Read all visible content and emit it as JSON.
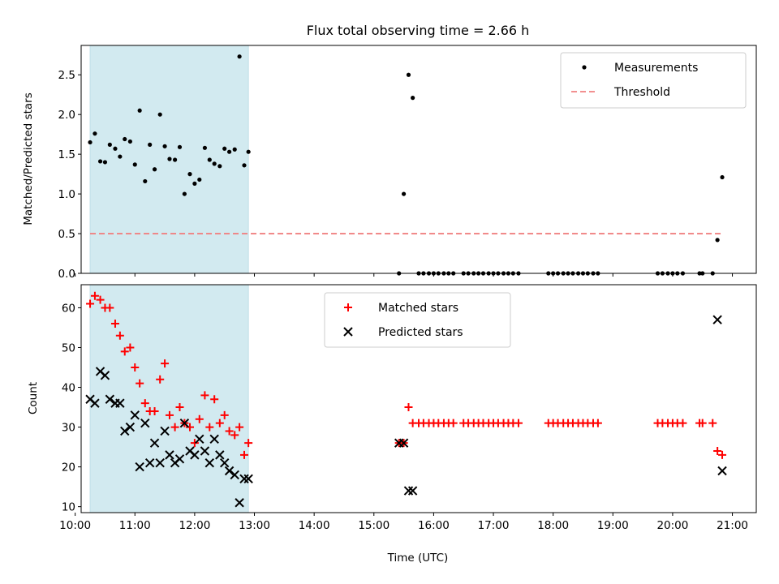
{
  "chart_data": [
    {
      "type": "scatter",
      "title": "Flux total observing time = 2.66 h",
      "xlabel": "",
      "ylabel": "Matched/Predicted stars",
      "xlim": [
        10.1,
        21.4
      ],
      "ylim": [
        0,
        2.87
      ],
      "yticks": [
        0.0,
        0.5,
        1.0,
        1.5,
        2.0,
        2.5
      ],
      "ytick_labels": [
        "0.0",
        "0.5",
        "1.0",
        "1.5",
        "2.0",
        "2.5"
      ],
      "shaded_span": [
        10.25,
        12.9
      ],
      "shade_color": "#d2eaf0",
      "legend_position": "top-right",
      "series": [
        {
          "name": "Measurements",
          "marker": "dot",
          "color": "#000000",
          "x": [
            10.25,
            10.33,
            10.42,
            10.5,
            10.58,
            10.67,
            10.75,
            10.83,
            10.92,
            11.0,
            11.08,
            11.17,
            11.25,
            11.33,
            11.42,
            11.5,
            11.58,
            11.67,
            11.75,
            11.83,
            11.92,
            12.0,
            12.08,
            12.17,
            12.25,
            12.33,
            12.42,
            12.5,
            12.58,
            12.67,
            12.75,
            12.83,
            12.9,
            15.42,
            15.5,
            15.58,
            15.65,
            15.75,
            15.83,
            15.92,
            16.0,
            16.08,
            16.17,
            16.25,
            16.33,
            16.5,
            16.58,
            16.67,
            16.75,
            16.83,
            16.92,
            17.0,
            17.08,
            17.17,
            17.25,
            17.33,
            17.42,
            17.92,
            18.0,
            18.08,
            18.17,
            18.25,
            18.33,
            18.42,
            18.5,
            18.58,
            18.67,
            18.75,
            19.75,
            19.83,
            19.92,
            20.0,
            20.08,
            20.17,
            20.45,
            20.5,
            20.67,
            20.75,
            20.83
          ],
          "y": [
            1.65,
            1.76,
            1.41,
            1.4,
            1.62,
            1.57,
            1.47,
            1.69,
            1.66,
            1.37,
            2.05,
            1.16,
            1.62,
            1.31,
            2.0,
            1.6,
            1.44,
            1.43,
            1.59,
            1.0,
            1.25,
            1.13,
            1.18,
            1.58,
            1.43,
            1.38,
            1.35,
            1.57,
            1.53,
            1.56,
            2.73,
            1.36,
            1.53,
            0,
            1.0,
            2.5,
            2.21,
            0,
            0,
            0,
            0,
            0,
            0,
            0,
            0,
            0,
            0,
            0,
            0,
            0,
            0,
            0,
            0,
            0,
            0,
            0,
            0,
            0,
            0,
            0,
            0,
            0,
            0,
            0,
            0,
            0,
            0,
            0,
            0,
            0,
            0,
            0,
            0,
            0,
            0,
            0,
            0,
            0.42,
            1.21
          ]
        },
        {
          "name": "Threshold",
          "style": "dashed",
          "color": "#f08080",
          "x": [
            10.25,
            20.83
          ],
          "y": [
            0.5,
            0.5
          ]
        }
      ]
    },
    {
      "type": "scatter",
      "title": "",
      "xlabel": "Time (UTC)",
      "ylabel": "Count",
      "xlim": [
        10.1,
        21.4
      ],
      "ylim": [
        8.5,
        65.8
      ],
      "yticks": [
        10,
        20,
        30,
        40,
        50,
        60
      ],
      "ytick_labels": [
        "10",
        "20",
        "30",
        "40",
        "50",
        "60"
      ],
      "xticks": [
        10,
        11,
        12,
        13,
        14,
        15,
        16,
        17,
        18,
        19,
        20,
        21
      ],
      "xtick_labels": [
        "10:00",
        "11:00",
        "12:00",
        "13:00",
        "14:00",
        "15:00",
        "16:00",
        "17:00",
        "18:00",
        "19:00",
        "20:00",
        "21:00"
      ],
      "shaded_span": [
        10.25,
        12.9
      ],
      "shade_color": "#d2eaf0",
      "legend_position": "top-center",
      "series": [
        {
          "name": "Matched stars",
          "marker": "plus",
          "color": "#ff0000",
          "x": [
            10.25,
            10.33,
            10.42,
            10.5,
            10.58,
            10.67,
            10.75,
            10.83,
            10.92,
            11.0,
            11.08,
            11.17,
            11.25,
            11.33,
            11.42,
            11.5,
            11.58,
            11.67,
            11.75,
            11.83,
            11.92,
            12.0,
            12.08,
            12.17,
            12.25,
            12.33,
            12.42,
            12.5,
            12.58,
            12.67,
            12.75,
            12.83,
            12.9,
            15.42,
            15.5,
            15.58,
            15.65,
            15.75,
            15.83,
            15.92,
            16.0,
            16.08,
            16.17,
            16.25,
            16.33,
            16.5,
            16.58,
            16.67,
            16.75,
            16.83,
            16.92,
            17.0,
            17.08,
            17.17,
            17.25,
            17.33,
            17.42,
            17.92,
            18.0,
            18.08,
            18.17,
            18.25,
            18.33,
            18.42,
            18.5,
            18.58,
            18.67,
            18.75,
            19.75,
            19.83,
            19.92,
            20.0,
            20.08,
            20.17,
            20.45,
            20.5,
            20.67,
            20.75,
            20.83
          ],
          "y": [
            61,
            63,
            62,
            60,
            60,
            56,
            53,
            49,
            50,
            45,
            41,
            36,
            34,
            34,
            42,
            46,
            33,
            30,
            35,
            31,
            30,
            26,
            32,
            38,
            30,
            37,
            31,
            33,
            29,
            28,
            30,
            23,
            26,
            26,
            26,
            35,
            31,
            31,
            31,
            31,
            31,
            31,
            31,
            31,
            31,
            31,
            31,
            31,
            31,
            31,
            31,
            31,
            31,
            31,
            31,
            31,
            31,
            31,
            31,
            31,
            31,
            31,
            31,
            31,
            31,
            31,
            31,
            31,
            31,
            31,
            31,
            31,
            31,
            31,
            31,
            31,
            31,
            24,
            23
          ]
        },
        {
          "name": "Predicted stars",
          "marker": "x",
          "color": "#000000",
          "x": [
            10.25,
            10.33,
            10.42,
            10.5,
            10.58,
            10.67,
            10.75,
            10.83,
            10.92,
            11.0,
            11.08,
            11.17,
            11.25,
            11.33,
            11.42,
            11.5,
            11.58,
            11.67,
            11.75,
            11.83,
            11.92,
            12.0,
            12.08,
            12.17,
            12.25,
            12.33,
            12.42,
            12.5,
            12.58,
            12.67,
            12.75,
            12.83,
            12.9,
            15.42,
            15.5,
            15.58,
            15.65,
            20.75,
            20.83
          ],
          "y": [
            37,
            36,
            44,
            43,
            37,
            36,
            36,
            29,
            30,
            33,
            20,
            31,
            21,
            26,
            21,
            29,
            23,
            21,
            22,
            31,
            24,
            23,
            27,
            24,
            21,
            27,
            23,
            21,
            19,
            18,
            11,
            17,
            17,
            26,
            26,
            14,
            14,
            57,
            19
          ]
        }
      ]
    }
  ]
}
